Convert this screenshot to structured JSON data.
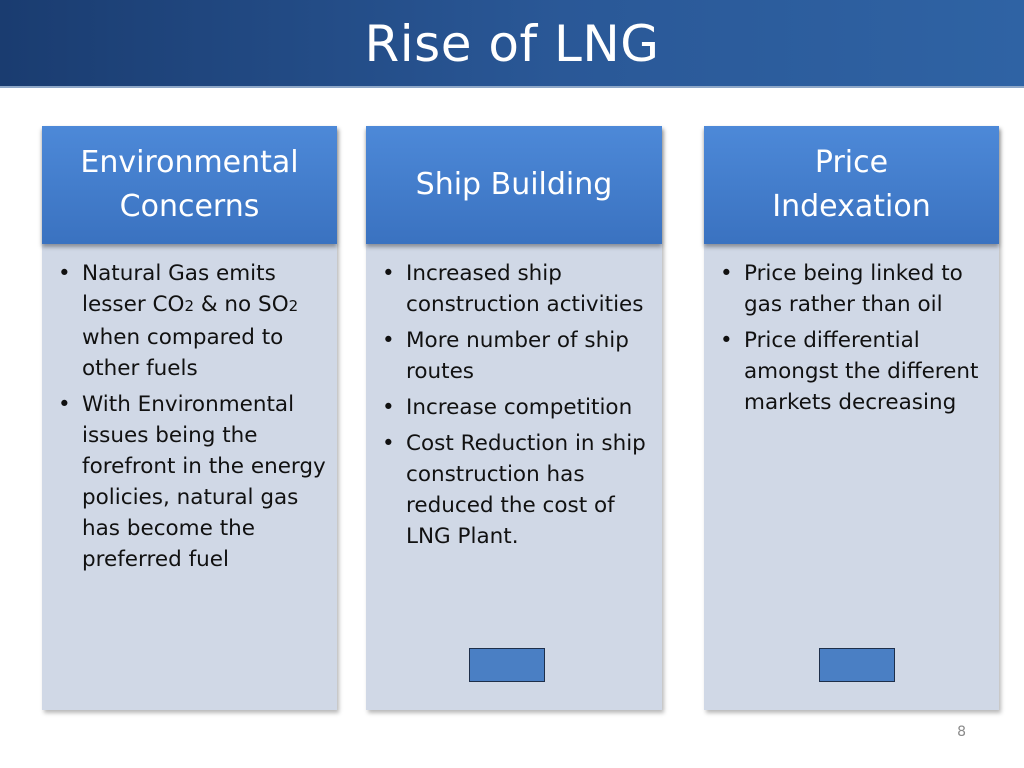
{
  "slide": {
    "title": "Rise of LNG",
    "page_number": "8"
  },
  "columns": [
    {
      "heading": "Environmental\nConcerns",
      "bullets": [
        {
          "parts": [
            "Natural Gas emits lesser CO",
            "2",
            " & no SO",
            "2",
            " when compared to other fuels"
          ]
        },
        {
          "text": "With Environmental issues being the forefront in the energy policies, natural gas has become the preferred fuel"
        }
      ]
    },
    {
      "heading": "Ship Building",
      "bullets": [
        {
          "text": "Increased ship construction activities"
        },
        {
          "text": "More number of ship routes"
        },
        {
          "text": "Increase competition"
        },
        {
          "text": "Cost Reduction in ship construction has reduced the cost of LNG Plant."
        }
      ]
    },
    {
      "heading": "Price\nIndexation",
      "bullets": [
        {
          "text": "Price being linked to gas rather than oil"
        },
        {
          "text": "Price differential amongst the different markets decreasing"
        }
      ]
    }
  ],
  "colors": {
    "title_bar": "#2a5897",
    "column_header": "#3f7acb",
    "column_body": "#d0d8e6",
    "small_box": "#4a7fc4"
  }
}
